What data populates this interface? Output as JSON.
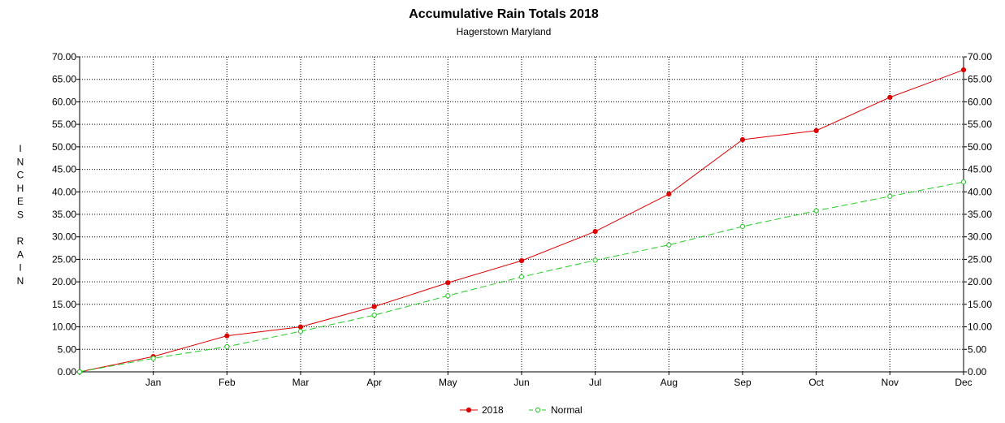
{
  "chart_data": {
    "type": "line",
    "title": "Accumulative Rain Totals 2018",
    "subtitle": "Hagerstown Maryland",
    "ylabel": "INCHES RAIN",
    "ylabel_letters": [
      "I",
      "N",
      "C",
      "H",
      "E",
      "S",
      "",
      "R",
      "A",
      "I",
      "N"
    ],
    "x": [
      "",
      "Jan",
      "Feb",
      "Mar",
      "Apr",
      "May",
      "Jun",
      "Jul",
      "Aug",
      "Sep",
      "Oct",
      "Nov",
      "Dec"
    ],
    "ylim": [
      0,
      70
    ],
    "yticks": [
      "0.00",
      "5.00",
      "10.00",
      "15.00",
      "20.00",
      "25.00",
      "30.00",
      "35.00",
      "40.00",
      "45.00",
      "50.00",
      "55.00",
      "60.00",
      "65.00",
      "70.00"
    ],
    "grid": true,
    "legend_position": "bottom",
    "series": [
      {
        "name": "2018",
        "color": "#dd0000",
        "dashed": false,
        "values": [
          0,
          3.4,
          8.0,
          10.0,
          14.5,
          19.8,
          24.7,
          31.2,
          39.5,
          51.6,
          53.6,
          61.0,
          67.1
        ]
      },
      {
        "name": "Normal",
        "color": "#22cc22",
        "dashed": true,
        "values": [
          0,
          3.0,
          5.6,
          9.0,
          12.6,
          16.9,
          21.1,
          24.8,
          28.2,
          32.3,
          35.8,
          39.0,
          42.2
        ]
      }
    ]
  }
}
